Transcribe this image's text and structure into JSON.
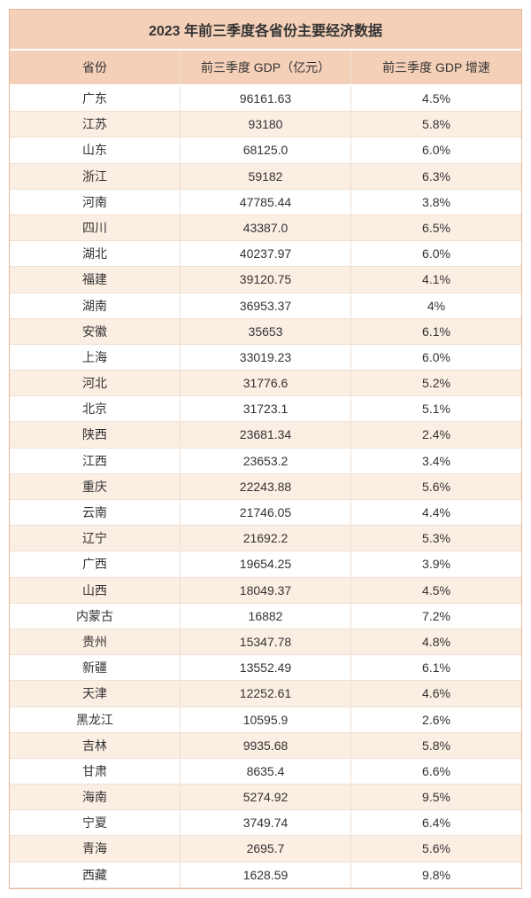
{
  "table": {
    "title": "2023 年前三季度各省份主要经济数据",
    "columns": [
      "省份",
      "前三季度 GDP（亿元）",
      "前三季度 GDP 增速"
    ],
    "rows": [
      [
        "广东",
        "96161.63",
        "4.5%"
      ],
      [
        "江苏",
        "93180",
        "5.8%"
      ],
      [
        "山东",
        "68125.0",
        "6.0%"
      ],
      [
        "浙江",
        "59182",
        "6.3%"
      ],
      [
        "河南",
        "47785.44",
        "3.8%"
      ],
      [
        "四川",
        "43387.0",
        "6.5%"
      ],
      [
        "湖北",
        "40237.97",
        "6.0%"
      ],
      [
        "福建",
        "39120.75",
        "4.1%"
      ],
      [
        "湖南",
        "36953.37",
        "4%"
      ],
      [
        "安徽",
        "35653",
        "6.1%"
      ],
      [
        "上海",
        "33019.23",
        "6.0%"
      ],
      [
        "河北",
        "31776.6",
        "5.2%"
      ],
      [
        "北京",
        "31723.1",
        "5.1%"
      ],
      [
        "陕西",
        "23681.34",
        "2.4%"
      ],
      [
        "江西",
        "23653.2",
        "3.4%"
      ],
      [
        "重庆",
        "22243.88",
        "5.6%"
      ],
      [
        "云南",
        "21746.05",
        "4.4%"
      ],
      [
        "辽宁",
        "21692.2",
        "5.3%"
      ],
      [
        "广西",
        "19654.25",
        "3.9%"
      ],
      [
        "山西",
        "18049.37",
        "4.5%"
      ],
      [
        "内蒙古",
        "16882",
        "7.2%"
      ],
      [
        "贵州",
        "15347.78",
        "4.8%"
      ],
      [
        "新疆",
        "13552.49",
        "6.1%"
      ],
      [
        "天津",
        "12252.61",
        "4.6%"
      ],
      [
        "黑龙江",
        "10595.9",
        "2.6%"
      ],
      [
        "吉林",
        "9935.68",
        "5.8%"
      ],
      [
        "甘肃",
        "8635.4",
        "6.6%"
      ],
      [
        "海南",
        "5274.92",
        "9.5%"
      ],
      [
        "宁夏",
        "3749.74",
        "6.4%"
      ],
      [
        "青海",
        "2695.7",
        "5.6%"
      ],
      [
        "西藏",
        "1628.59",
        "9.8%"
      ]
    ],
    "colors": {
      "header_bg": "#f5d0b8",
      "row_odd_bg": "#ffffff",
      "row_even_bg": "#fbeee3",
      "border": "#e8b898",
      "cell_border": "#f0e0d4",
      "text": "#333333"
    },
    "font_sizes": {
      "title": 16,
      "header": 14,
      "cell": 14
    }
  }
}
